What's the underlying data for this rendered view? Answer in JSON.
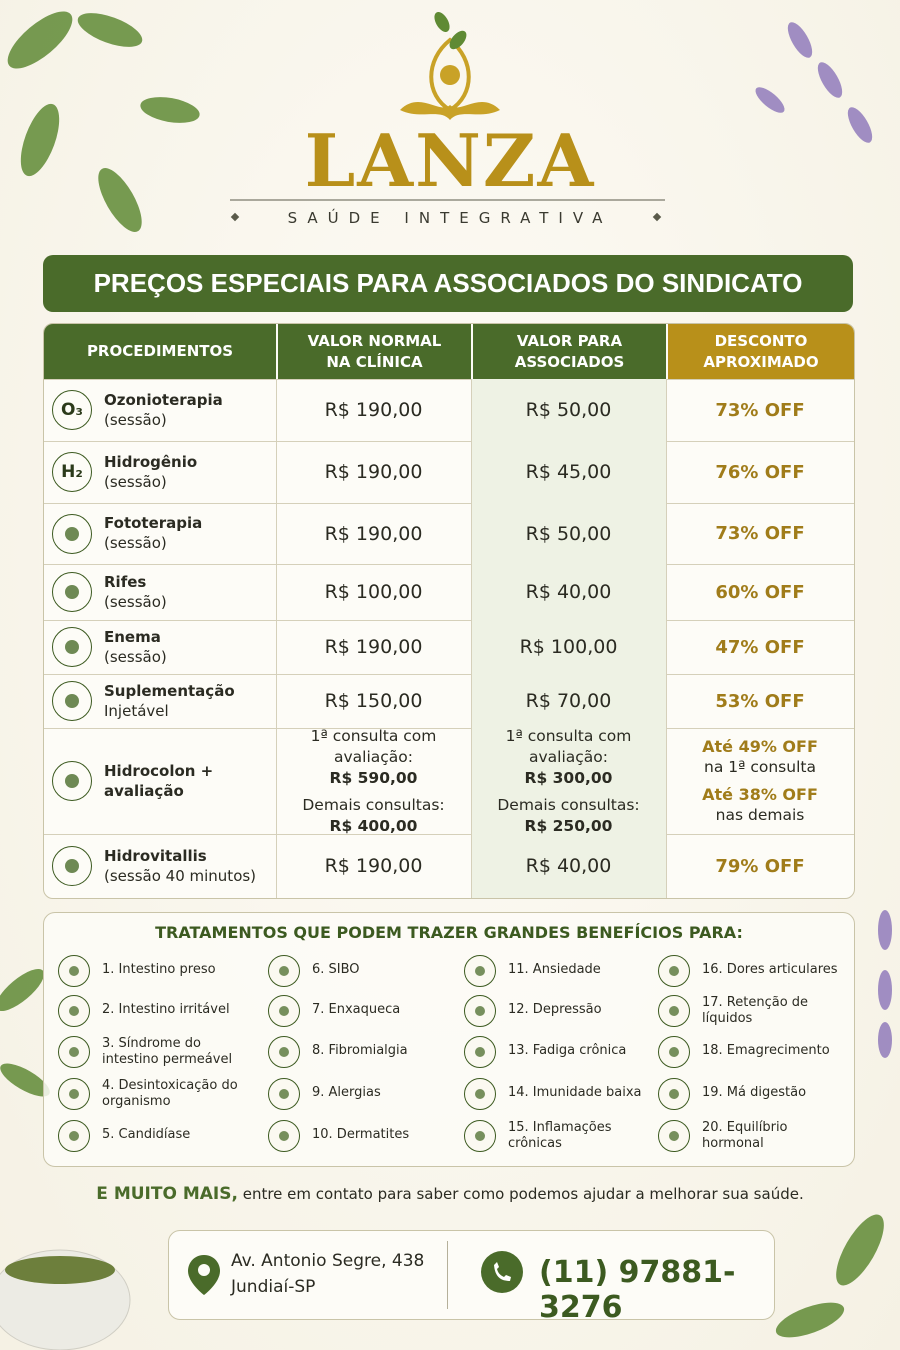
{
  "header": {
    "brand": "LANZA",
    "tagline": "SAÚDE INTEGRATIVA"
  },
  "banner": "PREÇOS ESPECIAIS PARA ASSOCIADOS DO SINDICATO",
  "table": {
    "headers": [
      "PROCEDIMENTOS",
      "VALOR NORMAL NA CLÍNICA",
      "VALOR PARA ASSOCIADOS",
      "DESCONTO APROXIMADO"
    ],
    "rows": [
      {
        "icon_text": "O₃",
        "name": "Ozonioterapia",
        "detail": "(sessão)",
        "normal": "R$ 190,00",
        "associate": "R$ 50,00",
        "discount": "73% OFF"
      },
      {
        "icon_text": "H₂",
        "name": "Hidrogênio",
        "detail": "(sessão)",
        "normal": "R$ 190,00",
        "associate": "R$ 45,00",
        "discount": "76% OFF"
      },
      {
        "name": "Fototerapia",
        "detail": "(sessão)",
        "normal": "R$ 190,00",
        "associate": "R$ 50,00",
        "discount": "73% OFF"
      },
      {
        "name": "Rifes",
        "detail": "(sessão)",
        "normal": "R$ 100,00",
        "associate": "R$ 40,00",
        "discount": "60% OFF"
      },
      {
        "name": "Enema",
        "detail": "(sessão)",
        "normal": "R$ 190,00",
        "associate": "R$ 100,00",
        "discount": "47% OFF"
      },
      {
        "name": "Suplementação",
        "detail": "Injetável",
        "normal": "R$ 150,00",
        "associate": "R$ 70,00",
        "discount": "53% OFF"
      },
      {
        "name": "Hidrocolon + avaliação",
        "normal": {
          "first_label": "1ª consulta com avaliação:",
          "first": "R$ 590,00",
          "other_label": "Demais consultas:",
          "other": "R$ 400,00"
        },
        "associate": {
          "first_label": "1ª consulta com avaliação:",
          "first": "R$ 300,00",
          "other_label": "Demais consultas:",
          "other": "R$ 250,00"
        },
        "discount": {
          "first": "Até 49% OFF",
          "first_note": "na 1ª consulta",
          "other": "Até 38% OFF",
          "other_note": "nas demais"
        }
      },
      {
        "name": "Hidrovitallis",
        "detail": "(sessão 40 minutos)",
        "normal": "R$ 190,00",
        "associate": "R$ 40,00",
        "discount": "79% OFF"
      }
    ]
  },
  "benefits": {
    "title": "TRATAMENTOS QUE PODEM TRAZER GRANDES BENEFÍCIOS PARA:",
    "items": [
      "1. Intestino preso",
      "2. Intestino irritável",
      "3. Síndrome do intestino permeável",
      "4. Desintoxicação do organismo",
      "5. Candidíase",
      "6. SIBO",
      "7. Enxaqueca",
      "8. Fibromialgia",
      "9. Alergias",
      "10. Dermatites",
      "11. Ansiedade",
      "12. Depressão",
      "13. Fadiga crônica",
      "14. Imunidade baixa",
      "15. Inflamações crônicas",
      "16. Dores articulares",
      "17. Retenção de líquidos",
      "18. Emagrecimento",
      "19. Má digestão",
      "20. Equilíbrio hormonal"
    ]
  },
  "footer": {
    "highlight": "E MUITO MAIS,",
    "text": "entre em contato para saber como podemos ajudar a melhorar sua saúde."
  },
  "contact": {
    "address_line1": "Av. Antonio Segre, 438",
    "address_line2": "Jundiaí-SP",
    "phone": "(11) 97881-3276"
  }
}
